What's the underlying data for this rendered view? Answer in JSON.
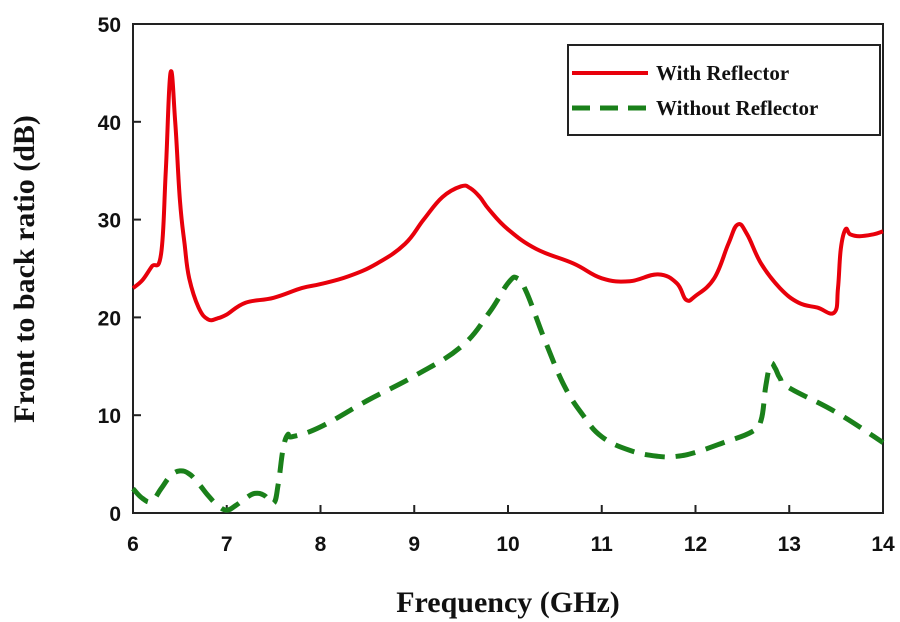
{
  "chart_data": {
    "type": "line",
    "xlabel": "Frequency (GHz)",
    "ylabel": "Front to back ratio (dB)",
    "xlim": [
      6,
      14
    ],
    "ylim": [
      0,
      50
    ],
    "xticks": [
      6,
      7,
      8,
      9,
      10,
      11,
      12,
      13,
      14
    ],
    "yticks": [
      0,
      10,
      20,
      30,
      40,
      50
    ],
    "grid": false,
    "legend_position": "top-right",
    "series": [
      {
        "name": "With Reflector",
        "color": "#e8000b",
        "style": "solid",
        "x": [
          6.0,
          6.1,
          6.2,
          6.3,
          6.35,
          6.4,
          6.45,
          6.5,
          6.55,
          6.6,
          6.7,
          6.8,
          6.9,
          7.0,
          7.2,
          7.5,
          7.8,
          8.0,
          8.3,
          8.6,
          8.9,
          9.1,
          9.3,
          9.5,
          9.6,
          9.7,
          9.8,
          10.0,
          10.3,
          10.7,
          11.0,
          11.3,
          11.6,
          11.8,
          11.9,
          12.0,
          12.2,
          12.35,
          12.45,
          12.55,
          12.7,
          12.9,
          13.1,
          13.3,
          13.48,
          13.52,
          13.55,
          13.6,
          13.65,
          13.75,
          13.9,
          14.0
        ],
        "y": [
          23.0,
          23.8,
          25.2,
          26.5,
          35.0,
          45.0,
          40.0,
          32.0,
          27.5,
          24.0,
          21.0,
          19.8,
          19.9,
          20.3,
          21.5,
          22.0,
          23.0,
          23.4,
          24.2,
          25.5,
          27.5,
          30.0,
          32.3,
          33.4,
          33.2,
          32.3,
          31.0,
          29.0,
          27.0,
          25.5,
          24.0,
          23.7,
          24.4,
          23.5,
          21.8,
          22.2,
          24.0,
          27.5,
          29.5,
          28.5,
          25.5,
          23.0,
          21.5,
          21.0,
          20.5,
          23.0,
          27.0,
          29.0,
          28.5,
          28.3,
          28.5,
          28.8
        ]
      },
      {
        "name": "Without Reflector",
        "color": "#1a801a",
        "style": "dashed",
        "x": [
          6.0,
          6.1,
          6.2,
          6.3,
          6.4,
          6.5,
          6.6,
          6.7,
          6.8,
          6.9,
          7.0,
          7.1,
          7.2,
          7.3,
          7.4,
          7.5,
          7.55,
          7.6,
          7.65,
          7.7,
          8.0,
          8.5,
          9.0,
          9.5,
          9.8,
          10.0,
          10.1,
          10.2,
          10.4,
          10.6,
          10.8,
          11.0,
          11.3,
          11.6,
          11.8,
          12.0,
          12.3,
          12.6,
          12.7,
          12.75,
          12.8,
          12.85,
          12.9,
          13.0,
          13.5,
          14.0
        ],
        "y": [
          2.5,
          1.5,
          1.2,
          2.5,
          3.8,
          4.3,
          4.0,
          3.0,
          1.8,
          0.8,
          0.3,
          0.8,
          1.5,
          2.0,
          1.8,
          1.0,
          3.0,
          6.5,
          8.0,
          7.8,
          8.8,
          11.5,
          14.0,
          17.0,
          20.5,
          23.5,
          24.0,
          22.5,
          17.5,
          13.0,
          10.0,
          7.8,
          6.4,
          5.8,
          5.8,
          6.2,
          7.2,
          8.3,
          9.5,
          13.0,
          15.2,
          14.8,
          13.8,
          12.8,
          10.3,
          7.2
        ]
      }
    ]
  }
}
